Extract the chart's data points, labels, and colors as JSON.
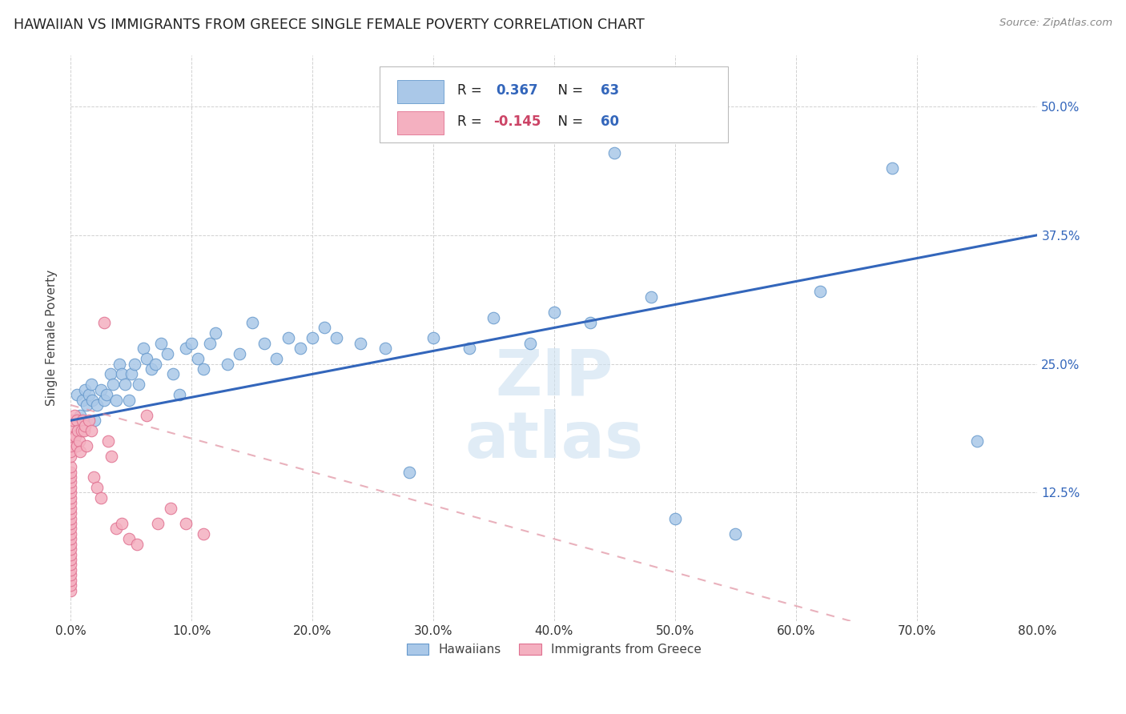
{
  "title": "HAWAIIAN VS IMMIGRANTS FROM GREECE SINGLE FEMALE POVERTY CORRELATION CHART",
  "source": "Source: ZipAtlas.com",
  "ylabel_label": "Single Female Poverty",
  "xlim": [
    0.0,
    0.8
  ],
  "ylim": [
    0.0,
    0.55
  ],
  "ytick_vals": [
    0.125,
    0.25,
    0.375,
    0.5
  ],
  "ytick_labels": [
    "12.5%",
    "25.0%",
    "37.5%",
    "50.0%"
  ],
  "xtick_vals": [
    0.0,
    0.1,
    0.2,
    0.3,
    0.4,
    0.5,
    0.6,
    0.7,
    0.8
  ],
  "xtick_labels": [
    "0.0%",
    "10.0%",
    "20.0%",
    "30.0%",
    "40.0%",
    "50.0%",
    "60.0%",
    "70.0%",
    "80.0%"
  ],
  "blue_fill": "#aac8e8",
  "blue_edge": "#6699cc",
  "blue_line": "#3366bb",
  "pink_fill": "#f4b0c0",
  "pink_edge": "#e07090",
  "pink_line": "#cc4466",
  "pink_line_dash": "#e090a0",
  "watermark_color": "#cce0f0",
  "hawaiian_x": [
    0.005,
    0.008,
    0.01,
    0.012,
    0.013,
    0.015,
    0.017,
    0.018,
    0.02,
    0.022,
    0.025,
    0.028,
    0.03,
    0.033,
    0.035,
    0.038,
    0.04,
    0.042,
    0.045,
    0.048,
    0.05,
    0.053,
    0.056,
    0.06,
    0.063,
    0.067,
    0.07,
    0.075,
    0.08,
    0.085,
    0.09,
    0.095,
    0.1,
    0.105,
    0.11,
    0.115,
    0.12,
    0.13,
    0.14,
    0.15,
    0.16,
    0.17,
    0.18,
    0.19,
    0.2,
    0.21,
    0.22,
    0.24,
    0.26,
    0.28,
    0.3,
    0.33,
    0.35,
    0.38,
    0.4,
    0.43,
    0.45,
    0.48,
    0.5,
    0.55,
    0.62,
    0.68,
    0.75
  ],
  "hawaiian_y": [
    0.22,
    0.2,
    0.215,
    0.225,
    0.21,
    0.22,
    0.23,
    0.215,
    0.195,
    0.21,
    0.225,
    0.215,
    0.22,
    0.24,
    0.23,
    0.215,
    0.25,
    0.24,
    0.23,
    0.215,
    0.24,
    0.25,
    0.23,
    0.265,
    0.255,
    0.245,
    0.25,
    0.27,
    0.26,
    0.24,
    0.22,
    0.265,
    0.27,
    0.255,
    0.245,
    0.27,
    0.28,
    0.25,
    0.26,
    0.29,
    0.27,
    0.255,
    0.275,
    0.265,
    0.275,
    0.285,
    0.275,
    0.27,
    0.265,
    0.145,
    0.275,
    0.265,
    0.295,
    0.27,
    0.3,
    0.29,
    0.455,
    0.315,
    0.1,
    0.085,
    0.32,
    0.44,
    0.175
  ],
  "greece_x": [
    0.0,
    0.0,
    0.0,
    0.0,
    0.0,
    0.0,
    0.0,
    0.0,
    0.0,
    0.0,
    0.0,
    0.0,
    0.0,
    0.0,
    0.0,
    0.0,
    0.0,
    0.0,
    0.0,
    0.0,
    0.0,
    0.0,
    0.0,
    0.0,
    0.0,
    0.0,
    0.0,
    0.0,
    0.0,
    0.0,
    0.002,
    0.003,
    0.004,
    0.005,
    0.005,
    0.006,
    0.007,
    0.008,
    0.009,
    0.01,
    0.011,
    0.012,
    0.013,
    0.015,
    0.017,
    0.019,
    0.022,
    0.025,
    0.028,
    0.031,
    0.034,
    0.038,
    0.042,
    0.048,
    0.055,
    0.063,
    0.072,
    0.083,
    0.095,
    0.11
  ],
  "greece_y": [
    0.03,
    0.035,
    0.04,
    0.045,
    0.05,
    0.055,
    0.06,
    0.065,
    0.07,
    0.075,
    0.08,
    0.085,
    0.09,
    0.095,
    0.1,
    0.105,
    0.11,
    0.115,
    0.12,
    0.125,
    0.13,
    0.135,
    0.14,
    0.145,
    0.15,
    0.16,
    0.165,
    0.17,
    0.18,
    0.19,
    0.195,
    0.2,
    0.18,
    0.17,
    0.195,
    0.185,
    0.175,
    0.165,
    0.185,
    0.195,
    0.185,
    0.19,
    0.17,
    0.195,
    0.185,
    0.14,
    0.13,
    0.12,
    0.29,
    0.175,
    0.16,
    0.09,
    0.095,
    0.08,
    0.075,
    0.2,
    0.095,
    0.11,
    0.095,
    0.085
  ]
}
